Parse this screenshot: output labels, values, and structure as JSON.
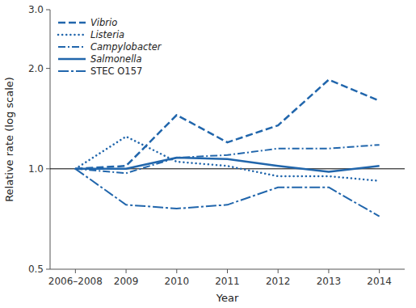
{
  "chart_data": {
    "type": "line",
    "x_label": "Year",
    "y_label": "Relative rate (log scale)",
    "categories": [
      "2006–2008",
      "2009",
      "2010",
      "2011",
      "2012",
      "2013",
      "2014"
    ],
    "series": [
      {
        "name": "Vibrio",
        "color": "#2166ac",
        "line_style": "dashed",
        "values": [
          1.0,
          1.02,
          1.45,
          1.2,
          1.35,
          1.85,
          1.6
        ]
      },
      {
        "name": "Listeria",
        "color": "#2166ac",
        "line_style": "dotted",
        "values": [
          1.0,
          1.25,
          1.05,
          1.02,
          0.95,
          0.95,
          0.92
        ]
      },
      {
        "name": "Campylobacter",
        "color": "#2166ac",
        "line_style": "dashdot",
        "values": [
          1.0,
          0.97,
          1.08,
          1.1,
          1.15,
          1.15,
          1.18
        ]
      },
      {
        "name": "Salmonella",
        "color": "#2166ac",
        "line_style": "solid",
        "values": [
          1.0,
          1.0,
          1.08,
          1.07,
          1.02,
          0.98,
          1.02
        ]
      },
      {
        "name": "STEC O157",
        "color": "#2166ac",
        "line_style": "longdashdot",
        "values": [
          1.0,
          0.78,
          0.76,
          0.78,
          0.88,
          0.88,
          0.72
        ]
      }
    ],
    "reference_line": 1.0,
    "log": "y",
    "ylim": [
      0.5,
      3.0
    ],
    "yticks": [
      0.5,
      {
        "value": 1.0,
        "label": "1.0"
      },
      {
        "value": 2.0,
        "label": "2.0"
      },
      {
        "value": 3.0,
        "label": "3.0"
      }
    ],
    "grid": false,
    "legend": "upper-left"
  }
}
